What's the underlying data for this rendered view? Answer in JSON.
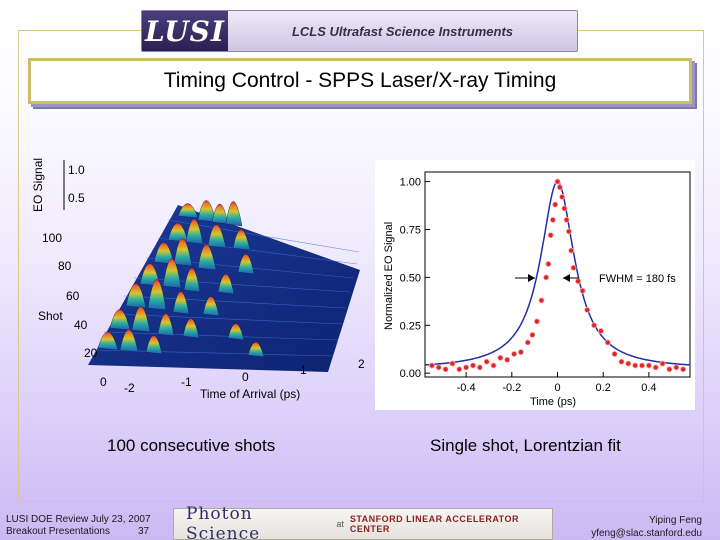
{
  "header": {
    "logo": "LUSI",
    "subtitle": "LCLS Ultrafast Science Instruments"
  },
  "slide_title": "Timing Control - SPPS Laser/X-ray Timing",
  "left_figure": {
    "y_axis_label": "EO Signal",
    "signal_ticks": [
      "1.0",
      "0.5"
    ],
    "shot_axis_label": "Shot",
    "shot_ticks": [
      "100",
      "80",
      "60",
      "40",
      "20",
      "0"
    ],
    "x_axis_label": "Time of Arrival (ps)",
    "x_ticks": [
      "-2",
      "-1",
      "0",
      "1",
      "2"
    ],
    "caption": "100 consecutive shots"
  },
  "chart_data": {
    "type": "scatter",
    "title": "",
    "xlabel": "Time (ps)",
    "ylabel": "Normalized EO Signal",
    "xlim": [
      -0.58,
      0.58
    ],
    "ylim": [
      -0.02,
      1.05
    ],
    "x_ticks": [
      "-0.4",
      "-0.2",
      "0",
      "0.2",
      "0.4"
    ],
    "y_ticks": [
      "0.00",
      "0.25",
      "0.50",
      "0.75",
      "1.00"
    ],
    "annotation": "FWHM = 180 fs",
    "fit": {
      "name": "Lorentzian fit",
      "center_ps": 0.0,
      "fwhm_ps": 0.18,
      "offset": 0.02
    },
    "series": [
      {
        "name": "Single shot",
        "x": [
          -0.55,
          -0.52,
          -0.49,
          -0.46,
          -0.43,
          -0.4,
          -0.37,
          -0.34,
          -0.31,
          -0.28,
          -0.25,
          -0.22,
          -0.19,
          -0.16,
          -0.13,
          -0.11,
          -0.09,
          -0.07,
          -0.05,
          -0.04,
          -0.03,
          -0.02,
          -0.01,
          0.0,
          0.01,
          0.02,
          0.03,
          0.04,
          0.05,
          0.06,
          0.07,
          0.09,
          0.11,
          0.13,
          0.16,
          0.19,
          0.22,
          0.25,
          0.28,
          0.31,
          0.34,
          0.37,
          0.4,
          0.43,
          0.46,
          0.49,
          0.52,
          0.55
        ],
        "y": [
          0.04,
          0.03,
          0.02,
          0.05,
          0.02,
          0.03,
          0.04,
          0.03,
          0.06,
          0.04,
          0.08,
          0.07,
          0.1,
          0.11,
          0.16,
          0.2,
          0.27,
          0.38,
          0.5,
          0.57,
          0.72,
          0.8,
          0.88,
          1.0,
          0.97,
          0.92,
          0.86,
          0.8,
          0.74,
          0.64,
          0.55,
          0.48,
          0.43,
          0.33,
          0.25,
          0.22,
          0.16,
          0.1,
          0.06,
          0.05,
          0.04,
          0.04,
          0.04,
          0.03,
          0.05,
          0.02,
          0.03,
          0.02
        ]
      }
    ],
    "caption": "Single shot, Lorentzian fit"
  },
  "footer": {
    "event": "LUSI DOE Review July 23, 2007",
    "section": "Breakout Presentations",
    "page": "37",
    "logo_main": "Photon Science",
    "logo_at": "at",
    "logo_org": "STANFORD LINEAR ACCELERATOR CENTER",
    "author": "Yiping Feng",
    "email": "yfeng@slac.stanford.edu"
  },
  "colors": {
    "title_border": "#cdbc6a",
    "fit_line": "#1f2fa8",
    "points": "#e0242a",
    "banner_dark": "#2a2052"
  }
}
